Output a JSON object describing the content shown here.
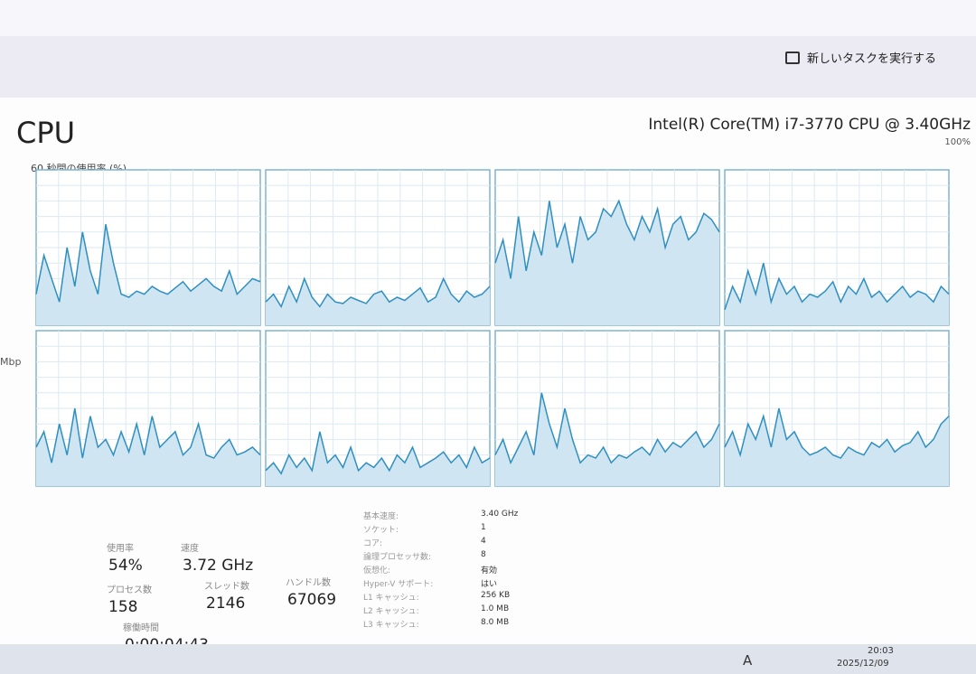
{
  "header": {
    "run_task": "新しいタスクを実行する"
  },
  "panel": {
    "title": "CPU",
    "cpu_name": "Intel(R) Core(TM) i7-3770 CPU @ 3.40GHz",
    "max_label": {
      "value": 100,
      "label": "100%"
    },
    "caption": "60 秒間の使用率 (%)",
    "side_label": "Mbp",
    "graphs": [
      {
        "values": [
          20,
          45,
          30,
          15,
          50,
          25,
          60,
          35,
          20,
          65,
          40,
          20,
          18,
          22,
          20,
          25,
          22,
          20,
          24,
          28,
          22,
          26,
          30,
          25,
          22,
          35,
          20,
          25,
          30,
          28
        ]
      },
      {
        "values": [
          15,
          20,
          12,
          25,
          15,
          30,
          18,
          12,
          20,
          15,
          14,
          18,
          16,
          14,
          20,
          22,
          15,
          18,
          16,
          20,
          24,
          15,
          18,
          30,
          20,
          15,
          22,
          18,
          20,
          25
        ]
      },
      {
        "values": [
          40,
          55,
          30,
          70,
          35,
          60,
          45,
          80,
          50,
          65,
          40,
          70,
          55,
          60,
          75,
          70,
          80,
          65,
          55,
          70,
          60,
          75,
          50,
          65,
          70,
          55,
          60,
          72,
          68,
          60
        ]
      },
      {
        "values": [
          10,
          25,
          15,
          35,
          20,
          40,
          15,
          30,
          20,
          25,
          15,
          20,
          18,
          22,
          28,
          15,
          25,
          20,
          30,
          18,
          22,
          15,
          20,
          25,
          18,
          22,
          20,
          15,
          25,
          20
        ]
      },
      {
        "values": [
          25,
          35,
          15,
          40,
          20,
          50,
          18,
          45,
          25,
          30,
          20,
          35,
          22,
          40,
          20,
          45,
          25,
          30,
          35,
          20,
          25,
          40,
          20,
          18,
          25,
          30,
          20,
          22,
          25,
          20
        ]
      },
      {
        "values": [
          10,
          15,
          8,
          20,
          12,
          18,
          10,
          35,
          15,
          20,
          12,
          25,
          10,
          15,
          12,
          18,
          10,
          20,
          15,
          25,
          12,
          15,
          18,
          22,
          15,
          20,
          12,
          25,
          15,
          18
        ]
      },
      {
        "values": [
          20,
          30,
          15,
          25,
          35,
          20,
          60,
          40,
          25,
          50,
          30,
          15,
          20,
          18,
          25,
          15,
          20,
          18,
          22,
          25,
          20,
          30,
          22,
          28,
          25,
          30,
          35,
          25,
          30,
          40
        ]
      },
      {
        "values": [
          25,
          35,
          20,
          40,
          30,
          45,
          25,
          50,
          30,
          35,
          25,
          20,
          22,
          25,
          20,
          18,
          25,
          22,
          20,
          28,
          25,
          30,
          22,
          26,
          28,
          35,
          25,
          30,
          40,
          45
        ]
      }
    ],
    "stats": [
      {
        "label": "使用率",
        "value": "54%"
      },
      {
        "label": "速度",
        "value": "3.72 GHz"
      },
      {
        "label": "プロセス数",
        "value": "158"
      },
      {
        "label": "スレッド数",
        "value": "2146"
      },
      {
        "label": "ハンドル数",
        "value": "67069"
      },
      {
        "label": "稼働時間",
        "value": "0:00:04:43"
      }
    ],
    "info": [
      {
        "label": "基本速度:",
        "value": "3.40 GHz"
      },
      {
        "label": "ソケット:",
        "value": "1"
      },
      {
        "label": "コア:",
        "value": "4"
      },
      {
        "label": "論理プロセッサ数:",
        "value": "8"
      },
      {
        "label": "仮想化:",
        "value": "有効"
      },
      {
        "label": "Hyper-V サポート:",
        "value": "はい"
      },
      {
        "label": "L1 キャッシュ:",
        "value": "256 KB"
      },
      {
        "label": "L2 キャッシュ:",
        "value": "1.0 MB"
      },
      {
        "label": "L3 キャッシュ:",
        "value": "8.0 MB"
      }
    ]
  },
  "taskbar": {
    "ime": "A",
    "time": "20:03",
    "date": "2025/12/09"
  }
}
